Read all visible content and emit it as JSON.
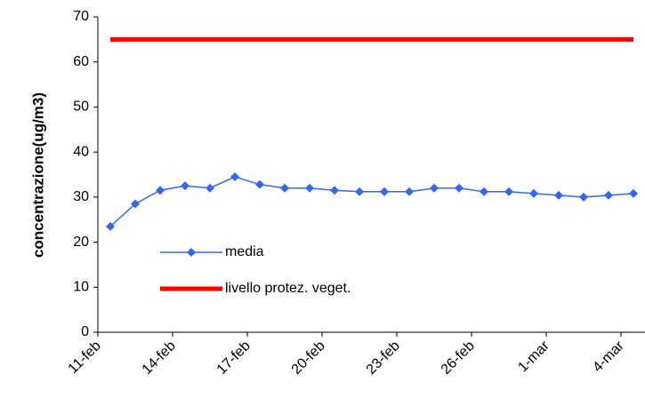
{
  "chart_data": {
    "type": "line",
    "ylabel": "concentrazione(ug/m3)",
    "categories": [
      "11-feb",
      null,
      null,
      "14-feb",
      null,
      null,
      "17-feb",
      null,
      null,
      "20-feb",
      null,
      null,
      "23-feb",
      null,
      null,
      "26-feb",
      null,
      null,
      "1-mar",
      null,
      null,
      "4-mar"
    ],
    "series": [
      {
        "name": "media",
        "color": "#3366ff",
        "marker": "diamond",
        "values": [
          23.5,
          28.5,
          31.5,
          32.5,
          32,
          34.5,
          32.8,
          32,
          32,
          31.5,
          31.2,
          31.2,
          31.2,
          32,
          32,
          31.2,
          31.2,
          30.8,
          30.4,
          30,
          30.4,
          30.8
        ]
      },
      {
        "name": "livello protez. veget.",
        "color": "#ff0000",
        "values": [
          65,
          65,
          65,
          65,
          65,
          65,
          65,
          65,
          65,
          65,
          65,
          65,
          65,
          65,
          65,
          65,
          65,
          65,
          65,
          65,
          65,
          65
        ]
      }
    ],
    "ylim": [
      0,
      70
    ],
    "yticks": [
      0,
      10,
      20,
      30,
      40,
      50,
      60,
      70
    ]
  }
}
